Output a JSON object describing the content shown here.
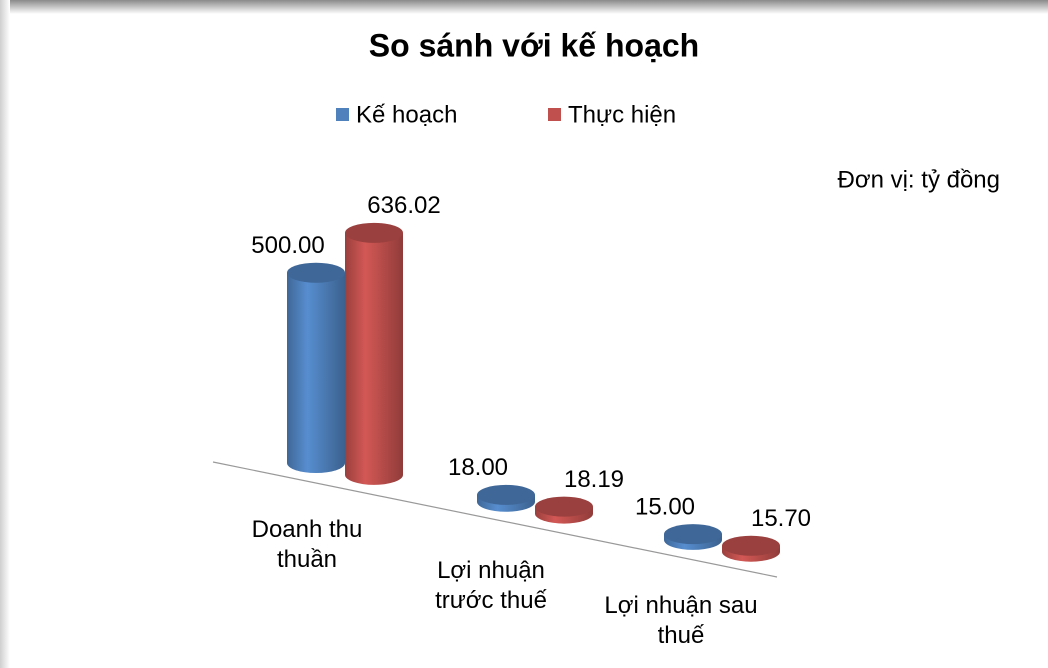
{
  "chart_data": {
    "type": "cylinder",
    "title": "So sánh với kế hoạch",
    "annotation": "Đơn vị: tỷ đồng",
    "categories": [
      "Doanh thu thuần",
      "Lợi nhuận trước thuế",
      "Lợi nhuận sau thuế"
    ],
    "series": [
      {
        "name": "Kế hoạch",
        "color": "#4f81bd",
        "values": [
          500,
          18,
          15
        ],
        "value_labels": [
          "500.00",
          "18.00",
          "15.00"
        ]
      },
      {
        "name": "Thực hiện",
        "color": "#c0504d",
        "values": [
          636.02,
          18.19,
          15.7
        ],
        "value_labels": [
          "636.02",
          "18.19",
          "15.70"
        ]
      }
    ]
  }
}
